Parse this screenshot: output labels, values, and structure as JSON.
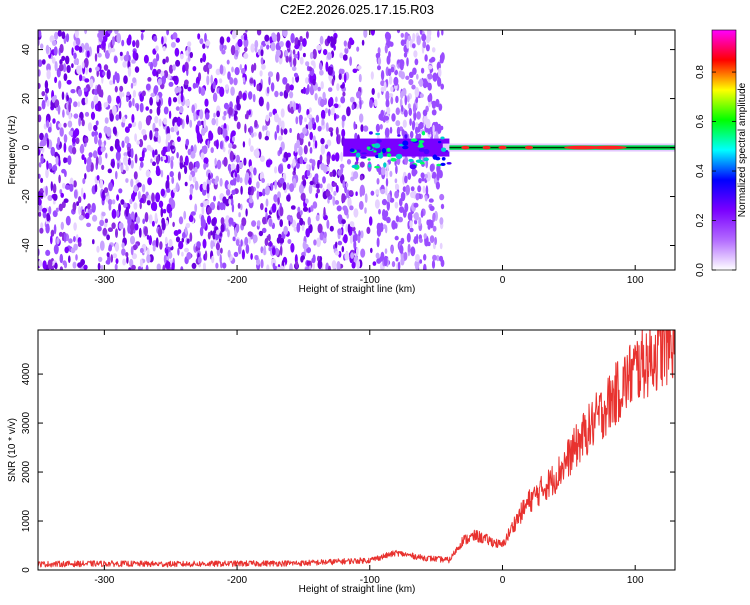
{
  "title": "C2E2.2026.025.17.15.R03",
  "chart_data": [
    {
      "type": "heatmap",
      "xlabel": "Height of straight line (km)",
      "ylabel": "Frequency (Hz)",
      "xlim": [
        -350,
        130
      ],
      "ylim": [
        -50,
        48
      ],
      "xticks": [
        -300,
        -200,
        -100,
        0,
        100
      ],
      "yticks": [
        -40,
        -20,
        0,
        20,
        40
      ],
      "colorbar": {
        "label": "Normalized spectral amplitude",
        "range": [
          0.0,
          0.97
        ],
        "ticks": [
          0.0,
          0.2,
          0.4,
          0.6,
          0.8
        ],
        "colormap": [
          "#ffffff",
          "#b36bff",
          "#7a00ff",
          "#0000ff",
          "#00ffff",
          "#00ff00",
          "#ffff00",
          "#ff0000",
          "#ff00ff"
        ]
      },
      "features": {
        "noise_region_km": [
          -350,
          -45
        ],
        "signal_line_hz": 0,
        "signal_start_km": -120
      }
    },
    {
      "type": "line",
      "xlabel": "Height of straight line (km)",
      "ylabel": "SNR (10 * v/v)",
      "xlim": [
        -350,
        130
      ],
      "ylim": [
        0,
        4900
      ],
      "xticks": [
        -300,
        -200,
        -100,
        0,
        100
      ],
      "yticks": [
        0,
        1000,
        2000,
        3000,
        4000
      ],
      "series": [
        {
          "name": "SNR",
          "color": "#e8322f",
          "x": [
            -350,
            -300,
            -250,
            -200,
            -150,
            -100,
            -80,
            -60,
            -40,
            -30,
            -20,
            -10,
            0,
            10,
            20,
            40,
            60,
            80,
            100,
            120,
            130
          ],
          "y": [
            120,
            130,
            120,
            130,
            140,
            200,
            350,
            250,
            200,
            600,
            700,
            600,
            500,
            1000,
            1400,
            1900,
            2700,
            3400,
            4100,
            4500,
            4700
          ]
        }
      ]
    }
  ]
}
